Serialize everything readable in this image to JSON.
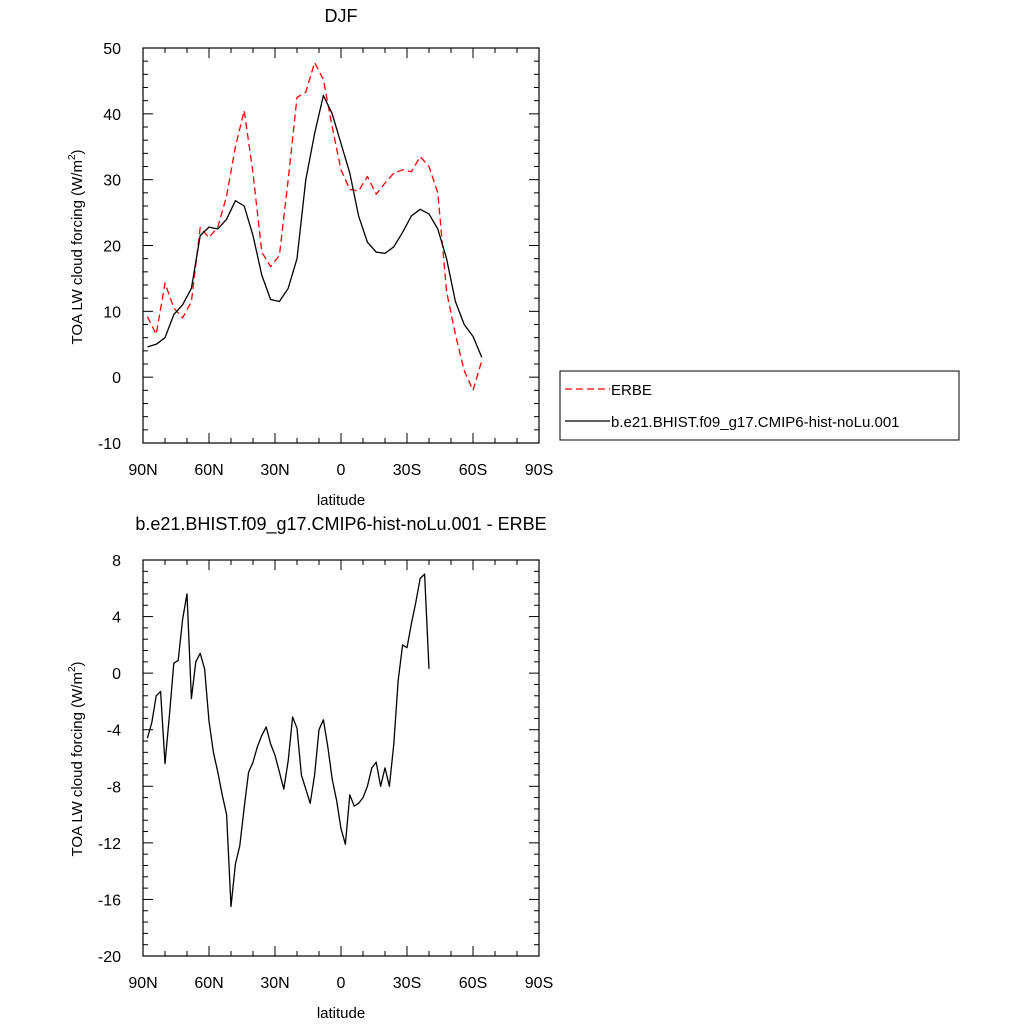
{
  "chart_data": [
    {
      "type": "line",
      "title": "DJF",
      "xlabel": "latitude",
      "ylabel": "TOA LW cloud forcing (W/m",
      "ylabel_sup": "2",
      "ylabel_tail": ")",
      "xlim": [
        90,
        -90
      ],
      "ylim": [
        -10,
        50
      ],
      "x_ticks": [
        90,
        60,
        30,
        0,
        -30,
        -60,
        -90
      ],
      "x_tick_labels": [
        "90N",
        "60N",
        "30N",
        "0",
        "30S",
        "60S",
        "90S"
      ],
      "y_ticks": [
        -10,
        0,
        10,
        20,
        30,
        40,
        50
      ],
      "y_tick_labels": [
        "-10",
        "0",
        "10",
        "20",
        "30",
        "40",
        "50"
      ],
      "legend": "right",
      "grid": false,
      "x": [
        88,
        84,
        80,
        76,
        72,
        68,
        64,
        60,
        56,
        52,
        48,
        44,
        40,
        36,
        32,
        28,
        24,
        20,
        16,
        12,
        8,
        4,
        0,
        -4,
        -8,
        -12,
        -16,
        -20,
        -24,
        -28,
        -32,
        -36,
        -40,
        -44,
        -48,
        -52,
        -56,
        -60,
        -64,
        -68,
        -72,
        -76,
        -80,
        -84,
        -88
      ],
      "series": [
        {
          "name": "ERBE",
          "color": "#ff0000",
          "dash": true,
          "values": [
            9.2,
            6.5,
            14.3,
            10.5,
            9.0,
            11.5,
            22.7,
            21.2,
            22.8,
            27.5,
            35.0,
            40.5,
            31.0,
            19.0,
            16.8,
            18.5,
            30.0,
            42.5,
            43.3,
            47.8,
            45.2,
            38.0,
            31.5,
            28.5,
            28.3,
            30.5,
            27.8,
            29.5,
            31.0,
            31.5,
            31.2,
            33.5,
            32.0,
            28.0,
            13.0,
            6.5,
            1.0,
            -2.0,
            2.5,
            null,
            null,
            null,
            null,
            null,
            null
          ]
        },
        {
          "name": "b.e21.BHIST.f09_g17.CMIP6-hist-noLu.001",
          "color": "#000000",
          "dash": false,
          "values": [
            4.6,
            5.0,
            6.0,
            9.5,
            11.0,
            13.5,
            21.5,
            22.8,
            22.5,
            24.0,
            26.8,
            26.0,
            21.5,
            15.5,
            11.8,
            11.5,
            13.5,
            18.0,
            30.0,
            37.0,
            42.8,
            40.0,
            35.5,
            31.0,
            24.5,
            20.5,
            19.0,
            18.8,
            19.8,
            22.0,
            24.5,
            25.5,
            24.8,
            22.5,
            18.0,
            11.5,
            8.0,
            6.2,
            3.0,
            null,
            null,
            null,
            null,
            null,
            null
          ]
        }
      ]
    },
    {
      "type": "line",
      "title": "b.e21.BHIST.f09_g17.CMIP6-hist-noLu.001 - ERBE",
      "xlabel": "latitude",
      "ylabel": "TOA LW cloud forcing (W/m",
      "ylabel_sup": "2",
      "ylabel_tail": ")",
      "xlim": [
        90,
        -90
      ],
      "ylim": [
        -20,
        8
      ],
      "x_ticks": [
        90,
        60,
        30,
        0,
        -30,
        -60,
        -90
      ],
      "x_tick_labels": [
        "90N",
        "60N",
        "30N",
        "0",
        "30S",
        "60S",
        "90S"
      ],
      "y_ticks": [
        -20,
        -16,
        -12,
        -8,
        -4,
        0,
        4,
        8
      ],
      "y_tick_labels": [
        "-20",
        "-16",
        "-12",
        "-8",
        "-4",
        "0",
        "4",
        "8"
      ],
      "grid": false,
      "x": [
        88,
        86,
        84,
        82,
        80,
        78,
        76,
        74,
        72,
        70,
        68,
        66,
        64,
        62,
        60,
        58,
        56,
        54,
        52,
        50,
        48,
        46,
        44,
        42,
        40,
        38,
        36,
        34,
        32,
        30,
        28,
        26,
        24,
        22,
        20,
        18,
        16,
        14,
        12,
        10,
        8,
        6,
        4,
        2,
        0,
        -2,
        -4,
        -6,
        -8,
        -10,
        -12,
        -14,
        -16,
        -18,
        -20,
        -22,
        -24,
        -26,
        -28,
        -30,
        -32,
        -34,
        -36,
        -38,
        -40,
        -42,
        -44,
        -46,
        -48,
        -50,
        -52,
        -54,
        -56,
        -58,
        -60,
        -62,
        -64,
        -66,
        -68,
        -70,
        -72,
        -74,
        -76,
        -78,
        -80,
        -82,
        -84,
        -86,
        -88
      ],
      "series": [
        {
          "name": "",
          "color": "#000000",
          "dash": false,
          "values": [
            -4.6,
            -3.5,
            -1.6,
            -1.3,
            -6.4,
            -3.0,
            0.7,
            0.9,
            3.8,
            5.6,
            -1.8,
            0.8,
            1.4,
            0.3,
            -3.4,
            -5.6,
            -7.0,
            -8.6,
            -10.0,
            -16.5,
            -13.5,
            -12.2,
            -9.5,
            -7.0,
            -6.3,
            -5.2,
            -4.4,
            -3.8,
            -5.0,
            -5.8,
            -7.0,
            -8.2,
            -6.2,
            -3.1,
            -3.9,
            -7.2,
            -8.2,
            -9.2,
            -7.2,
            -4.0,
            -3.3,
            -5.2,
            -7.5,
            -9.0,
            -11.0,
            -12.1,
            -8.6,
            -9.4,
            -9.2,
            -8.8,
            -8.0,
            -6.7,
            -6.3,
            -8.0,
            -6.7,
            -8.0,
            -5.0,
            -0.5,
            2.0,
            1.8,
            3.5,
            5.0,
            6.7,
            7.0,
            0.3,
            null,
            null,
            null,
            null,
            null,
            null,
            null,
            null,
            null,
            null,
            null,
            null,
            null,
            null,
            null,
            null,
            null,
            null,
            null,
            null,
            null,
            null,
            null,
            null
          ]
        }
      ]
    }
  ]
}
